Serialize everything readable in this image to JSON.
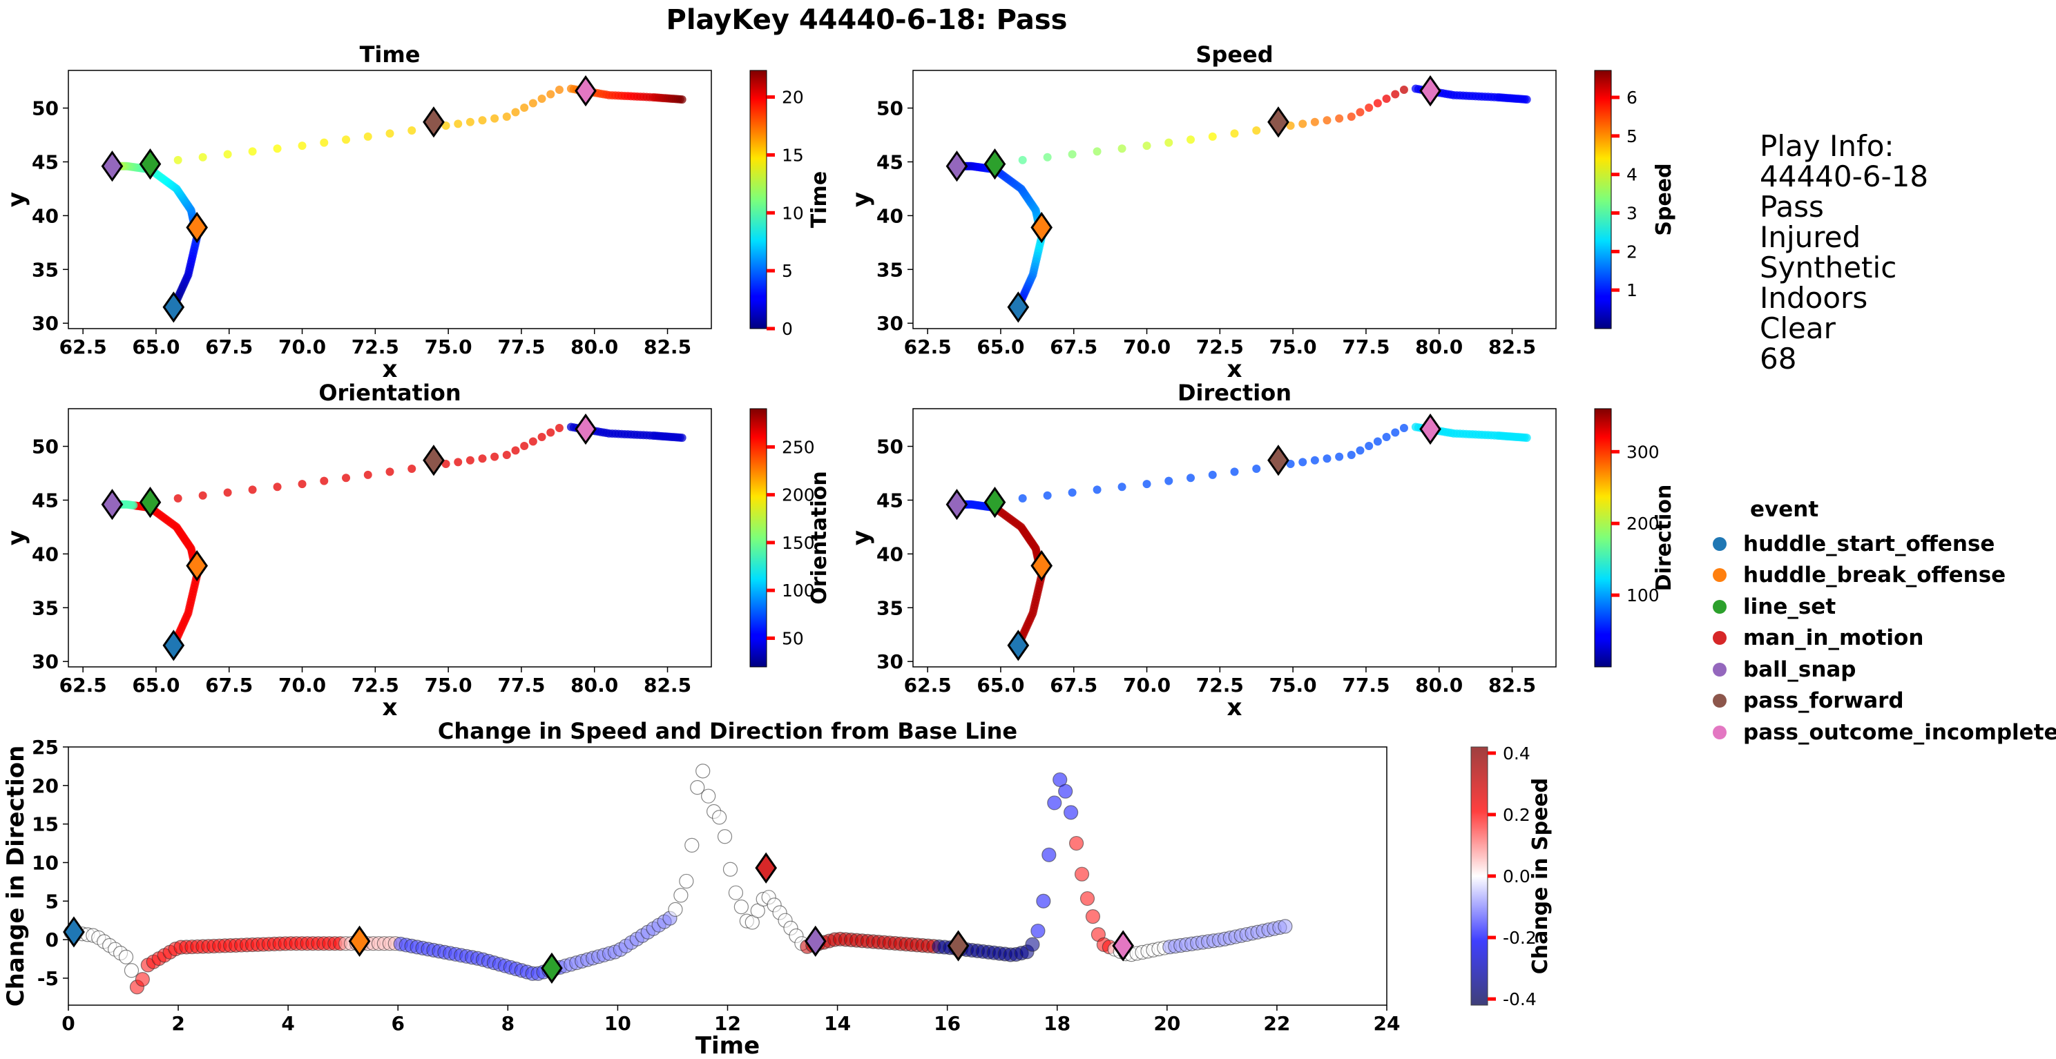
{
  "figure": {
    "title": "PlayKey 44440-6-18: Pass"
  },
  "events": [
    {
      "name": "huddle_start_offense",
      "color": "#1f77b4"
    },
    {
      "name": "huddle_break_offense",
      "color": "#ff7f0e"
    },
    {
      "name": "line_set",
      "color": "#2ca02c"
    },
    {
      "name": "man_in_motion",
      "color": "#d62728"
    },
    {
      "name": "ball_snap",
      "color": "#9467bd"
    },
    {
      "name": "pass_forward",
      "color": "#8c564b"
    },
    {
      "name": "pass_outcome_incomplete",
      "color": "#e377c2"
    }
  ],
  "legend": {
    "title": "event",
    "placement": "right"
  },
  "info": {
    "header": "Play Info:",
    "lines": [
      "44440-6-18",
      "Pass",
      "Injured",
      "Synthetic",
      "Indoors",
      "Clear",
      "68"
    ]
  },
  "chart_data": [
    {
      "type": "scatter",
      "title": "Time",
      "xlabel": "x",
      "ylabel": "y",
      "colorbar_label": "Time",
      "cmap": "jet",
      "xlim": [
        62.0,
        84.0
      ],
      "ylim": [
        29.5,
        53.5
      ],
      "xticks": [
        62.5,
        65.0,
        67.5,
        70.0,
        72.5,
        75.0,
        77.5,
        80.0,
        82.5
      ],
      "yticks": [
        30,
        35,
        40,
        45,
        50
      ],
      "cbar_range": [
        0,
        22.3
      ],
      "cbar_ticks": [
        0,
        5,
        10,
        15,
        20
      ],
      "path": [
        [
          65.6,
          31.5
        ],
        [
          66.1,
          34.5
        ],
        [
          66.4,
          38.0
        ],
        [
          66.2,
          40.5
        ],
        [
          65.7,
          42.5
        ],
        [
          64.8,
          44.3
        ],
        [
          64.0,
          44.6
        ],
        [
          63.5,
          44.6
        ]
      ],
      "throw": [
        [
          64.9,
          44.9
        ],
        [
          70.0,
          46.5
        ],
        [
          74.5,
          48.2
        ],
        [
          77.0,
          49.2
        ],
        [
          78.8,
          51.7
        ]
      ],
      "finish": [
        [
          79.2,
          51.8
        ],
        [
          80.5,
          51.2
        ],
        [
          82.0,
          51.0
        ],
        [
          83.0,
          50.8
        ]
      ],
      "markers": [
        {
          "event": "huddle_start_offense",
          "x": 65.6,
          "y": 31.5
        },
        {
          "event": "huddle_break_offense",
          "x": 66.4,
          "y": 38.9
        },
        {
          "event": "line_set",
          "x": 64.8,
          "y": 44.8
        },
        {
          "event": "ball_snap",
          "x": 63.5,
          "y": 44.6
        },
        {
          "event": "pass_forward",
          "x": 74.5,
          "y": 48.7
        },
        {
          "event": "pass_outcome_incomplete",
          "x": 79.7,
          "y": 51.6
        }
      ]
    },
    {
      "type": "scatter",
      "title": "Speed",
      "xlabel": "x",
      "ylabel": "y",
      "colorbar_label": "Speed",
      "cmap": "jet",
      "xlim": [
        62.0,
        84.0
      ],
      "ylim": [
        29.5,
        53.5
      ],
      "xticks": [
        62.5,
        65.0,
        67.5,
        70.0,
        72.5,
        75.0,
        77.5,
        80.0,
        82.5
      ],
      "yticks": [
        30,
        35,
        40,
        45,
        50
      ],
      "cbar_range": [
        0,
        6.7
      ],
      "cbar_ticks": [
        1,
        2,
        3,
        4,
        5,
        6
      ]
    },
    {
      "type": "scatter",
      "title": "Orientation",
      "xlabel": "x",
      "ylabel": "y",
      "colorbar_label": "Orientation",
      "cmap": "jet",
      "xlim": [
        62.0,
        84.0
      ],
      "ylim": [
        29.5,
        53.5
      ],
      "xticks": [
        62.5,
        65.0,
        67.5,
        70.0,
        72.5,
        75.0,
        77.5,
        80.0,
        82.5
      ],
      "yticks": [
        30,
        35,
        40,
        45,
        50
      ],
      "cbar_range": [
        20,
        290
      ],
      "cbar_ticks": [
        50,
        100,
        150,
        200,
        250
      ]
    },
    {
      "type": "scatter",
      "title": "Direction",
      "xlabel": "x",
      "ylabel": "y",
      "colorbar_label": "Direction",
      "cmap": "jet",
      "xlim": [
        62.0,
        84.0
      ],
      "ylim": [
        29.5,
        53.5
      ],
      "xticks": [
        62.5,
        65.0,
        67.5,
        70.0,
        72.5,
        75.0,
        77.5,
        80.0,
        82.5
      ],
      "yticks": [
        30,
        35,
        40,
        45,
        50
      ],
      "cbar_range": [
        0,
        360
      ],
      "cbar_ticks": [
        100,
        200,
        300
      ]
    },
    {
      "type": "scatter",
      "title": "Change in Speed and Direction from Base Line",
      "xlabel": "Time",
      "ylabel": "Change in Direction",
      "colorbar_label": "Change in Speed",
      "cmap": "seismic",
      "xlim": [
        0,
        24
      ],
      "ylim": [
        -8.5,
        25
      ],
      "xticks": [
        0,
        2,
        4,
        6,
        8,
        10,
        12,
        14,
        16,
        18,
        20,
        22,
        24
      ],
      "yticks": [
        -5,
        0,
        5,
        10,
        15,
        20,
        25
      ],
      "cbar_range": [
        -0.42,
        0.42
      ],
      "cbar_ticks": [
        -0.4,
        -0.2,
        0.0,
        0.2,
        0.4
      ],
      "markers": [
        {
          "event": "huddle_start_offense",
          "x": 0.1,
          "y": 1.0
        },
        {
          "event": "huddle_break_offense",
          "x": 5.3,
          "y": -0.2
        },
        {
          "event": "line_set",
          "x": 8.8,
          "y": -3.7
        },
        {
          "event": "man_in_motion",
          "x": 12.7,
          "y": 9.3
        },
        {
          "event": "ball_snap",
          "x": 13.6,
          "y": -0.2
        },
        {
          "event": "pass_forward",
          "x": 16.2,
          "y": -0.8
        },
        {
          "event": "pass_outcome_incomplete",
          "x": 19.2,
          "y": -0.8
        }
      ]
    }
  ]
}
